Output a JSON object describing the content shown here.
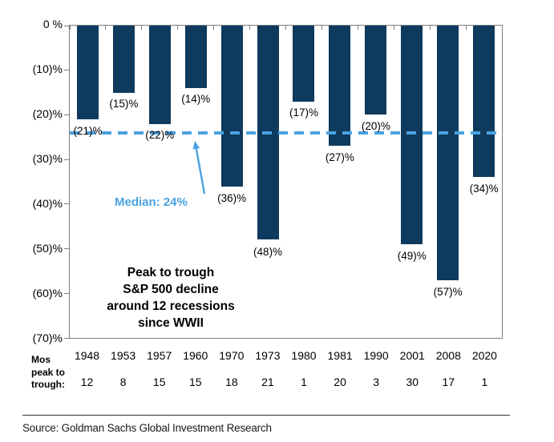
{
  "chart_data": {
    "type": "bar",
    "annotation": "Peak to trough S&P 500 decline around 12 recessions since WWII",
    "annotation_lines": [
      "Peak to trough",
      "S&P 500 decline",
      "around 12 recessions",
      "since WWII"
    ],
    "categories": [
      "1948",
      "1953",
      "1957",
      "1960",
      "1970",
      "1973",
      "1980",
      "1981",
      "1990",
      "2001",
      "2008",
      "2020"
    ],
    "series": [
      {
        "name": "Peak to trough S&P 500 decline",
        "values": [
          -21,
          -15,
          -22,
          -14,
          -36,
          -48,
          -17,
          -27,
          -20,
          -49,
          -57,
          -34
        ]
      }
    ],
    "bar_labels": [
      "(21)%",
      "(15)%",
      "(22)%",
      "(14)%",
      "(36)%",
      "(48)%",
      "(17)%",
      "(27)%",
      "(20)%",
      "(49)%",
      "(57)%",
      "(34)%"
    ],
    "months_peak_to_trough": [
      "12",
      "8",
      "15",
      "15",
      "18",
      "21",
      "1",
      "20",
      "3",
      "30",
      "17",
      "1"
    ],
    "y_ticks": [
      "0 %",
      "(10)%",
      "(20)%",
      "(30)%",
      "(40)%",
      "(50)%",
      "(60)%",
      "(70)%"
    ],
    "ylim": [
      -70,
      0
    ],
    "grid": false,
    "legend": "none",
    "median": {
      "value": -24,
      "label": "Median: 24%"
    },
    "colors": {
      "bar": "#0e3a5e",
      "median": "#4aa2e2",
      "axis": "#7f7f7f"
    }
  },
  "row_label": {
    "lines": [
      "Mos",
      "peak to",
      "trough:"
    ]
  },
  "source": "Source: Goldman Sachs Global Investment Research"
}
